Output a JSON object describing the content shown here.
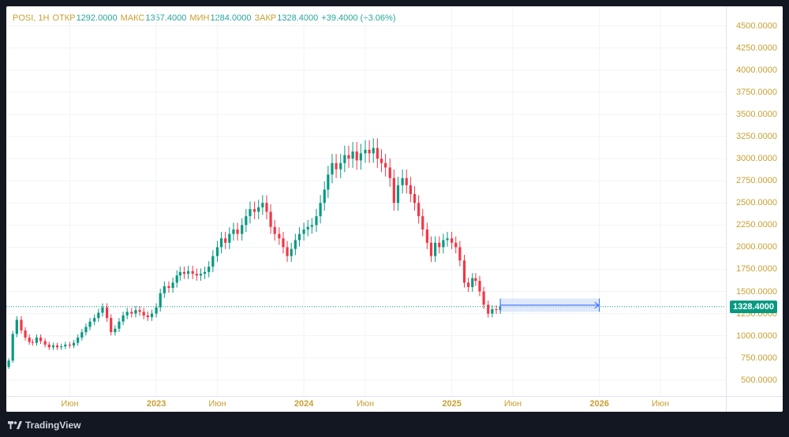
{
  "legend": {
    "symbol": "POSI, 1H",
    "open_label": "ОТКР",
    "open": "1292.0000",
    "high_label": "МАКС",
    "high": "1357.4000",
    "low_label": "МИН",
    "low": "1284.0000",
    "close_label": "ЗАКР",
    "close": "1328.4000",
    "change": "+39.4000 (+3.06%)"
  },
  "last_price_label": "1328.4000",
  "branding": {
    "name": "TradingView"
  },
  "colors": {
    "up": "#089981",
    "down": "#f23645",
    "axis_text": "#c8a032",
    "grid": "#f0f3fa",
    "range_fill": "#c9daf8",
    "range_line": "#2962ff"
  },
  "chart_data": {
    "type": "candlestick",
    "ylim": [
      320,
      4720
    ],
    "y_ticks": [
      {
        "value": 500,
        "label": "500.0000"
      },
      {
        "value": 750,
        "label": "750.0000"
      },
      {
        "value": 1000,
        "label": "1000.0000"
      },
      {
        "value": 1250,
        "label": "1250.0000"
      },
      {
        "value": 1500,
        "label": "1500.0000"
      },
      {
        "value": 1750,
        "label": "1750.0000"
      },
      {
        "value": 2000,
        "label": "2000.0000"
      },
      {
        "value": 2250,
        "label": "2250.0000"
      },
      {
        "value": 2500,
        "label": "2500.0000"
      },
      {
        "value": 2750,
        "label": "2750.0000"
      },
      {
        "value": 3000,
        "label": "3000.0000"
      },
      {
        "value": 3250,
        "label": "3250.0000"
      },
      {
        "value": 3500,
        "label": "3500.0000"
      },
      {
        "value": 3750,
        "label": "3750.0000"
      },
      {
        "value": 4000,
        "label": "4000.0000"
      },
      {
        "value": 4250,
        "label": "4250.0000"
      },
      {
        "value": 4500,
        "label": "4500.0000"
      }
    ],
    "x_ticks": [
      {
        "date": "2022-06-01",
        "label": "Июн",
        "bold": false
      },
      {
        "date": "2023-01-01",
        "label": "2023",
        "bold": true
      },
      {
        "date": "2023-06-01",
        "label": "Июн",
        "bold": false
      },
      {
        "date": "2024-01-01",
        "label": "2024",
        "bold": true
      },
      {
        "date": "2024-06-01",
        "label": "Июн",
        "bold": false
      },
      {
        "date": "2025-01-01",
        "label": "2025",
        "bold": true
      },
      {
        "date": "2025-06-01",
        "label": "Июн",
        "bold": false
      },
      {
        "date": "2026-01-01",
        "label": "2026",
        "bold": true
      },
      {
        "date": "2026-06-01",
        "label": "Июн",
        "bold": false
      }
    ],
    "last_price": 1328.4,
    "date_range_box": {
      "from": "2025-05-01",
      "to": "2026-01-01",
      "low": 1270,
      "high": 1420
    },
    "candles": [
      {
        "date": "2022-01-01",
        "close": 720
      },
      {
        "date": "2022-01-11",
        "close": 1020
      },
      {
        "date": "2022-01-21",
        "close": 1180
      },
      {
        "date": "2022-02-01",
        "close": 1060
      },
      {
        "date": "2022-02-11",
        "close": 980
      },
      {
        "date": "2022-02-21",
        "close": 930
      },
      {
        "date": "2022-03-01",
        "close": 920
      },
      {
        "date": "2022-03-11",
        "close": 980
      },
      {
        "date": "2022-03-21",
        "close": 940
      },
      {
        "date": "2022-04-01",
        "close": 900
      },
      {
        "date": "2022-04-11",
        "close": 870
      },
      {
        "date": "2022-04-21",
        "close": 890
      },
      {
        "date": "2022-05-01",
        "close": 870
      },
      {
        "date": "2022-05-11",
        "close": 880
      },
      {
        "date": "2022-05-21",
        "close": 900
      },
      {
        "date": "2022-06-01",
        "close": 890
      },
      {
        "date": "2022-06-11",
        "close": 920
      },
      {
        "date": "2022-06-21",
        "close": 980
      },
      {
        "date": "2022-07-01",
        "close": 1040
      },
      {
        "date": "2022-07-11",
        "close": 1100
      },
      {
        "date": "2022-07-21",
        "close": 1160
      },
      {
        "date": "2022-08-01",
        "close": 1200
      },
      {
        "date": "2022-08-11",
        "close": 1260
      },
      {
        "date": "2022-08-21",
        "close": 1320
      },
      {
        "date": "2022-09-01",
        "close": 1200
      },
      {
        "date": "2022-09-11",
        "close": 1040
      },
      {
        "date": "2022-09-21",
        "close": 1080
      },
      {
        "date": "2022-10-01",
        "close": 1160
      },
      {
        "date": "2022-10-11",
        "close": 1230
      },
      {
        "date": "2022-10-21",
        "close": 1270
      },
      {
        "date": "2022-11-01",
        "close": 1250
      },
      {
        "date": "2022-11-11",
        "close": 1290
      },
      {
        "date": "2022-11-21",
        "close": 1270
      },
      {
        "date": "2022-12-01",
        "close": 1230
      },
      {
        "date": "2022-12-11",
        "close": 1210
      },
      {
        "date": "2022-12-21",
        "close": 1250
      },
      {
        "date": "2023-01-01",
        "close": 1320
      },
      {
        "date": "2023-01-11",
        "close": 1480
      },
      {
        "date": "2023-01-21",
        "close": 1560
      },
      {
        "date": "2023-02-01",
        "close": 1540
      },
      {
        "date": "2023-02-11",
        "close": 1600
      },
      {
        "date": "2023-02-21",
        "close": 1680
      },
      {
        "date": "2023-03-01",
        "close": 1720
      },
      {
        "date": "2023-03-11",
        "close": 1700
      },
      {
        "date": "2023-03-21",
        "close": 1730
      },
      {
        "date": "2023-04-01",
        "close": 1700
      },
      {
        "date": "2023-04-11",
        "close": 1680
      },
      {
        "date": "2023-04-21",
        "close": 1700
      },
      {
        "date": "2023-05-01",
        "close": 1720
      },
      {
        "date": "2023-05-11",
        "close": 1780
      },
      {
        "date": "2023-05-21",
        "close": 1900
      },
      {
        "date": "2023-06-01",
        "close": 2000
      },
      {
        "date": "2023-06-11",
        "close": 2100
      },
      {
        "date": "2023-06-21",
        "close": 2050
      },
      {
        "date": "2023-07-01",
        "close": 2150
      },
      {
        "date": "2023-07-11",
        "close": 2200
      },
      {
        "date": "2023-07-21",
        "close": 2150
      },
      {
        "date": "2023-08-01",
        "close": 2250
      },
      {
        "date": "2023-08-11",
        "close": 2350
      },
      {
        "date": "2023-08-21",
        "close": 2430
      },
      {
        "date": "2023-09-01",
        "close": 2400
      },
      {
        "date": "2023-09-11",
        "close": 2450
      },
      {
        "date": "2023-09-21",
        "close": 2500
      },
      {
        "date": "2023-10-01",
        "close": 2400
      },
      {
        "date": "2023-10-11",
        "close": 2230
      },
      {
        "date": "2023-10-21",
        "close": 2150
      },
      {
        "date": "2023-11-01",
        "close": 2100
      },
      {
        "date": "2023-11-11",
        "close": 2000
      },
      {
        "date": "2023-11-21",
        "close": 1900
      },
      {
        "date": "2023-12-01",
        "close": 1980
      },
      {
        "date": "2023-12-11",
        "close": 2080
      },
      {
        "date": "2023-12-21",
        "close": 2150
      },
      {
        "date": "2024-01-01",
        "close": 2200
      },
      {
        "date": "2024-01-11",
        "close": 2230
      },
      {
        "date": "2024-01-21",
        "close": 2250
      },
      {
        "date": "2024-02-01",
        "close": 2350
      },
      {
        "date": "2024-02-11",
        "close": 2500
      },
      {
        "date": "2024-02-21",
        "close": 2650
      },
      {
        "date": "2024-03-01",
        "close": 2820
      },
      {
        "date": "2024-03-11",
        "close": 2950
      },
      {
        "date": "2024-03-21",
        "close": 2880
      },
      {
        "date": "2024-04-01",
        "close": 2950
      },
      {
        "date": "2024-04-11",
        "close": 3040
      },
      {
        "date": "2024-04-21",
        "close": 3000
      },
      {
        "date": "2024-05-01",
        "close": 3080
      },
      {
        "date": "2024-05-11",
        "close": 2980
      },
      {
        "date": "2024-05-21",
        "close": 3060
      },
      {
        "date": "2024-06-01",
        "close": 3100
      },
      {
        "date": "2024-06-11",
        "close": 3060
      },
      {
        "date": "2024-06-21",
        "close": 3120
      },
      {
        "date": "2024-07-01",
        "close": 3000
      },
      {
        "date": "2024-07-11",
        "close": 2950
      },
      {
        "date": "2024-07-21",
        "close": 2900
      },
      {
        "date": "2024-08-01",
        "close": 2780
      },
      {
        "date": "2024-08-11",
        "close": 2500
      },
      {
        "date": "2024-08-21",
        "close": 2700
      },
      {
        "date": "2024-09-01",
        "close": 2780
      },
      {
        "date": "2024-09-11",
        "close": 2700
      },
      {
        "date": "2024-09-21",
        "close": 2600
      },
      {
        "date": "2024-10-01",
        "close": 2500
      },
      {
        "date": "2024-10-11",
        "close": 2350
      },
      {
        "date": "2024-10-21",
        "close": 2200
      },
      {
        "date": "2024-11-01",
        "close": 2050
      },
      {
        "date": "2024-11-11",
        "close": 1900
      },
      {
        "date": "2024-11-21",
        "close": 2050
      },
      {
        "date": "2024-12-01",
        "close": 2000
      },
      {
        "date": "2024-12-11",
        "close": 2080
      },
      {
        "date": "2024-12-21",
        "close": 2100
      },
      {
        "date": "2025-01-01",
        "close": 2050
      },
      {
        "date": "2025-01-11",
        "close": 2000
      },
      {
        "date": "2025-01-21",
        "close": 1850
      },
      {
        "date": "2025-02-01",
        "close": 1600
      },
      {
        "date": "2025-02-11",
        "close": 1550
      },
      {
        "date": "2025-02-21",
        "close": 1650
      },
      {
        "date": "2025-03-01",
        "close": 1620
      },
      {
        "date": "2025-03-11",
        "close": 1500
      },
      {
        "date": "2025-03-21",
        "close": 1350
      },
      {
        "date": "2025-04-01",
        "close": 1250
      },
      {
        "date": "2025-04-11",
        "close": 1300
      },
      {
        "date": "2025-04-21",
        "close": 1292
      },
      {
        "date": "2025-05-01",
        "close": 1328.4
      }
    ]
  }
}
